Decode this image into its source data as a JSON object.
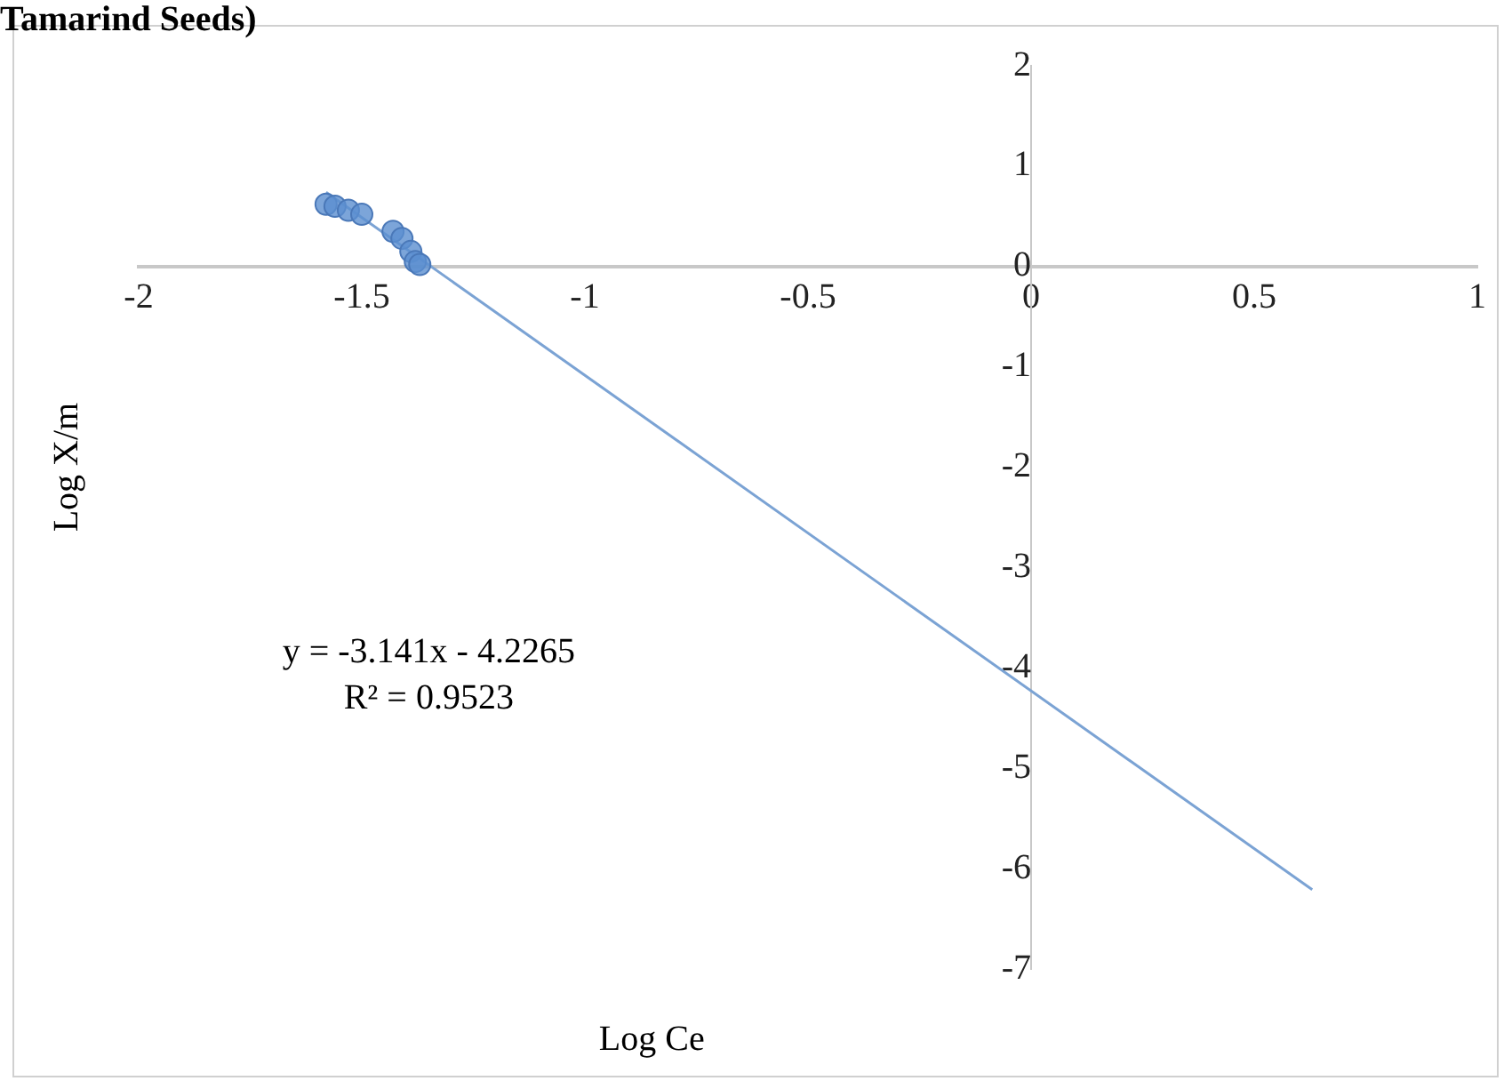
{
  "chart_data": {
    "type": "scatter",
    "title": "Tamarind Seeds)",
    "xlabel": "Log Ce",
    "ylabel": "Log X/m",
    "xlim": [
      -2,
      1
    ],
    "xticks": [
      -2,
      -1.5,
      -1,
      -0.5,
      0,
      0.5,
      1
    ],
    "ylim": [
      -7,
      2
    ],
    "yticks": [
      -7,
      -6,
      -5,
      -4,
      -3,
      -2,
      -1,
      0,
      1,
      2
    ],
    "grid": false,
    "legend": false,
    "marker": "circle",
    "annotations": [
      "y = -3.141x - 4.2265",
      "R² = 0.9523"
    ],
    "series": [
      {
        "color": "#5b8fd0",
        "x": [
          -1.58,
          -1.56,
          -1.53,
          -1.5,
          -1.43,
          -1.41,
          -1.39,
          -1.38,
          -1.37
        ],
        "values": [
          0.62,
          0.6,
          0.56,
          0.52,
          0.35,
          0.28,
          0.15,
          0.05,
          0.02
        ]
      },
      {
        "type": "line",
        "marker": "none",
        "color": "#7ba3d4",
        "x": [
          -1.58,
          0.63
        ],
        "values": [
          0.74,
          -6.21
        ]
      }
    ]
  }
}
